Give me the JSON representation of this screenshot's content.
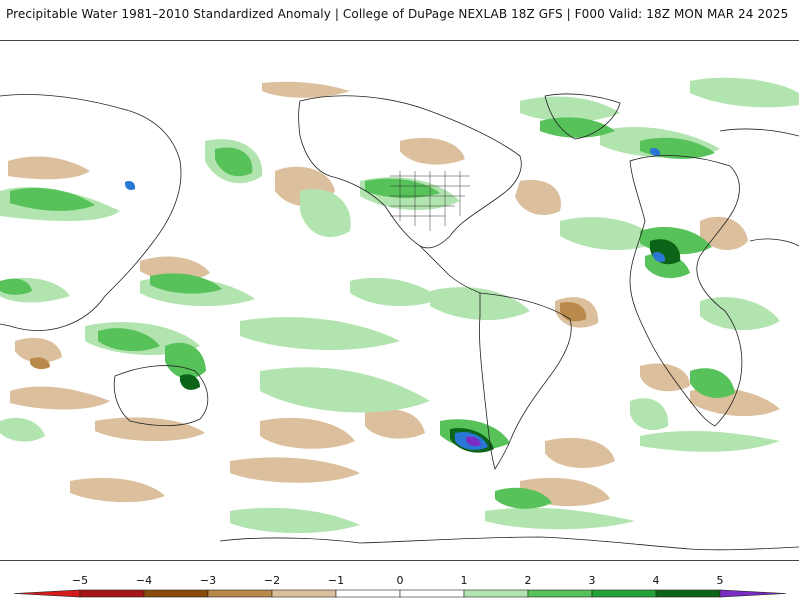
{
  "header": {
    "title": "Precipitable Water 1981–2010 Standardized Anomaly | College of DuPage NEXLAB   18Z GFS | F000 Valid: 18Z MON MAR 24 2025"
  },
  "map": {
    "projection": "cylindrical (global, Pacific-centered)",
    "product": "precipitable water standardized anomaly"
  },
  "legend": {
    "ticks": [
      "−5",
      "−4",
      "−3",
      "−2",
      "−1",
      "0",
      "1",
      "2",
      "3",
      "4",
      "5"
    ],
    "colors": {
      "neg_5": "#d41c1c",
      "neg_4": "#a51515",
      "neg_3": "#8a4b0a",
      "neg_2": "#b98a4c",
      "neg_1": "#dcbf9c",
      "neutral": "#ffffff",
      "pos_1": "#b2e4b0",
      "pos_2": "#58c25a",
      "pos_3": "#23a337",
      "pos_4": "#0b6417",
      "pos_5": "#2a78d6",
      "pos_6": "#7a2cc4"
    }
  }
}
